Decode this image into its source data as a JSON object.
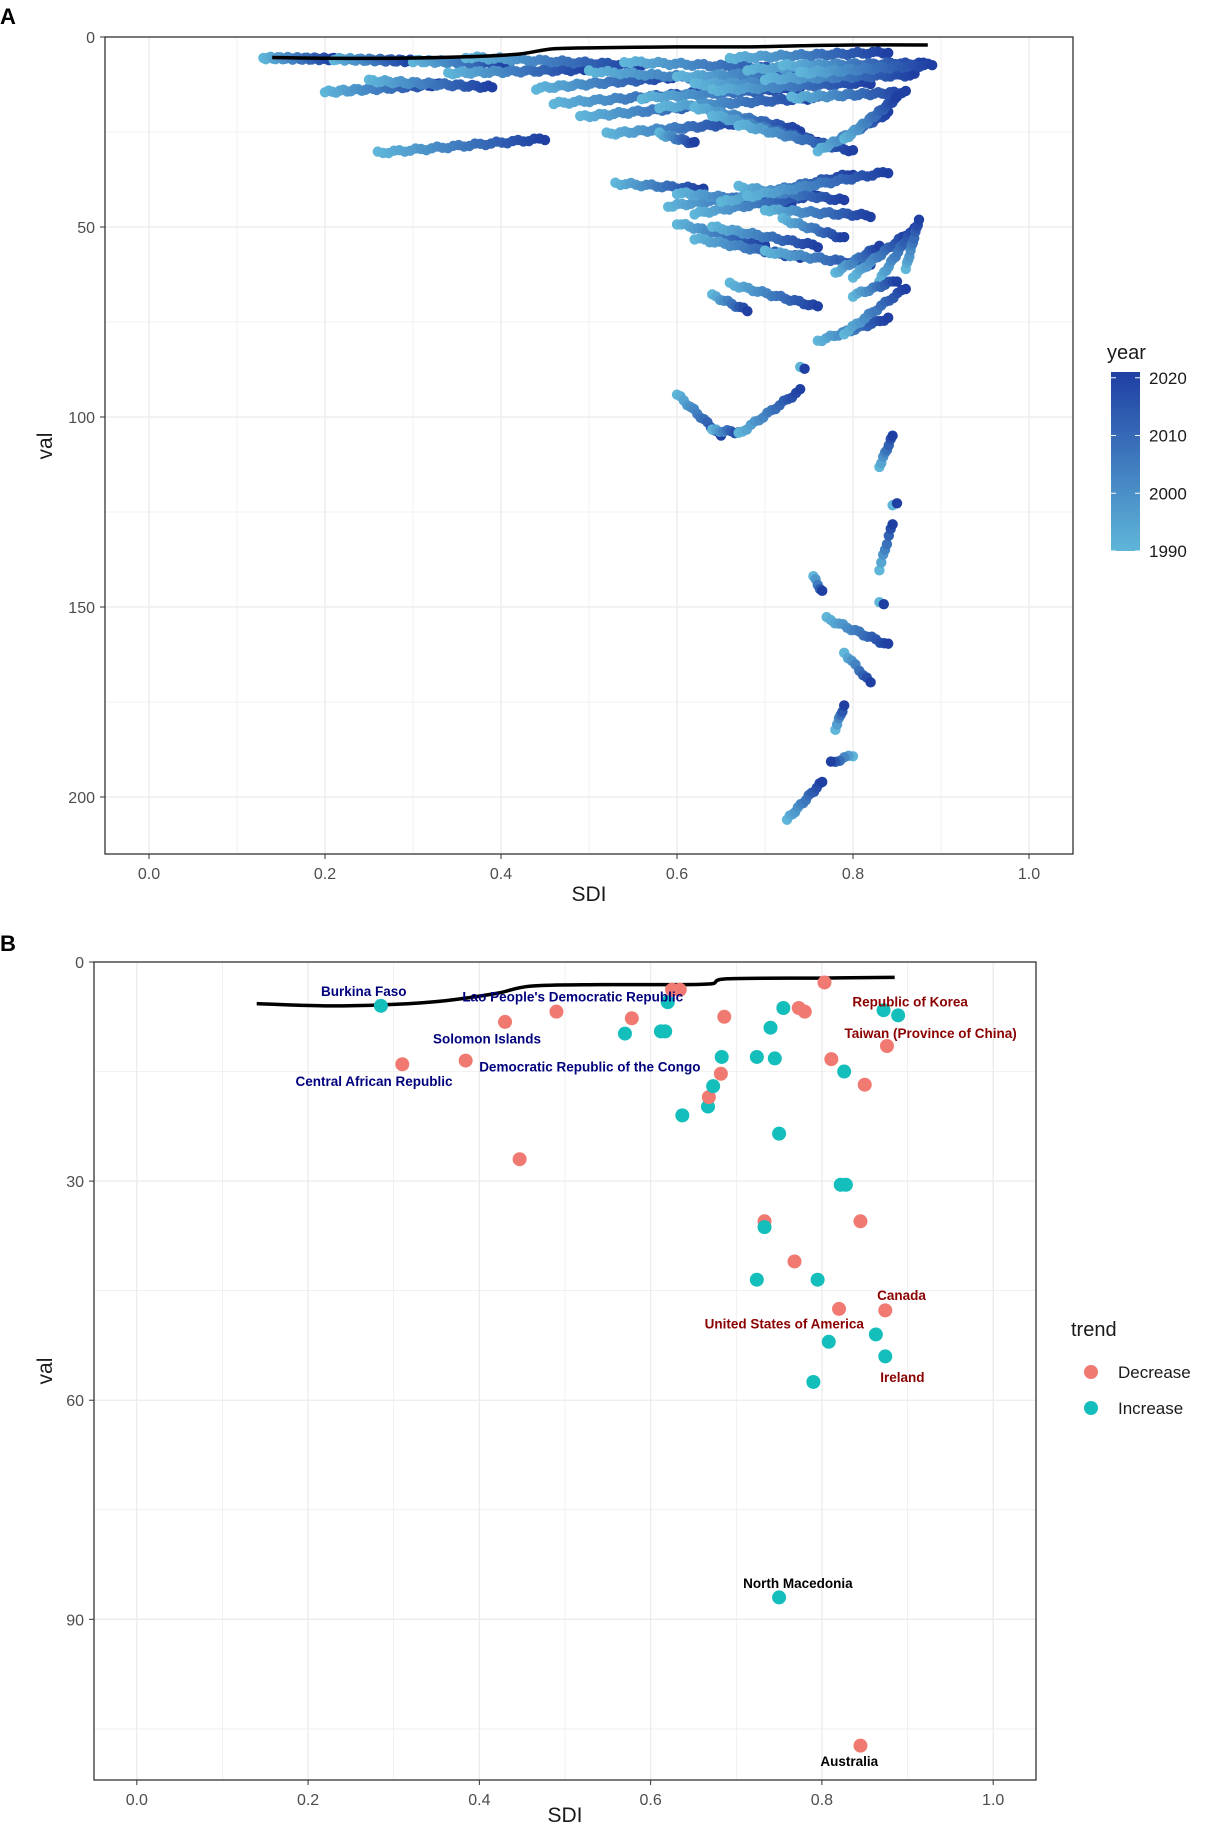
{
  "colors": {
    "year_low": "#5fb6d9",
    "year_high": "#1f3fa3",
    "decrease": "#f07a72",
    "increase": "#13bebb",
    "label_decrease": "#8b0000",
    "label_increase": "#00007d",
    "label_neutral": "#000000",
    "frontier": "#000000",
    "panel_border": "#333333",
    "grid": "#ebebeb"
  },
  "chart_data": [
    {
      "panel": "A",
      "type": "scatter",
      "xlabel": "SDI",
      "ylabel": "val",
      "xlim": [
        -0.05,
        1.05
      ],
      "ylim": [
        0,
        215
      ],
      "y_reversed": true,
      "xticks": [
        "0.0",
        "0.2",
        "0.4",
        "0.6",
        "0.8",
        "1.0"
      ],
      "yticks": [
        "0",
        "50",
        "100",
        "150",
        "200"
      ],
      "legend": {
        "title": "year",
        "labels": [
          "2020",
          "2010",
          "2000",
          "1990"
        ],
        "range": [
          1990,
          2021
        ]
      },
      "frontier": {
        "x": [
          0.14,
          0.2,
          0.28,
          0.36,
          0.42,
          0.46,
          0.52,
          0.6,
          0.68,
          0.74,
          0.8,
          0.885
        ],
        "y": [
          5.4,
          5.6,
          5.6,
          5.2,
          4.5,
          3.1,
          2.8,
          2.6,
          2.6,
          2.3,
          2.1,
          2.1
        ]
      },
      "trajectories": [
        {
          "x0": 0.13,
          "x1": 0.21,
          "y0": 5.5,
          "y1": 5.8,
          "n": 30
        },
        {
          "x0": 0.21,
          "x1": 0.3,
          "y0": 5.8,
          "y1": 6.3,
          "n": 30
        },
        {
          "x0": 0.3,
          "x1": 0.41,
          "y0": 6.3,
          "y1": 7.0,
          "n": 32
        },
        {
          "x0": 0.2,
          "x1": 0.33,
          "y0": 14.5,
          "y1": 12.5,
          "n": 32
        },
        {
          "x0": 0.25,
          "x1": 0.39,
          "y0": 11.5,
          "y1": 13.2,
          "n": 32
        },
        {
          "x0": 0.26,
          "x1": 0.45,
          "y0": 30.5,
          "y1": 26.8,
          "n": 32
        },
        {
          "x0": 0.34,
          "x1": 0.5,
          "y0": 9.5,
          "y1": 8.5,
          "n": 32
        },
        {
          "x0": 0.36,
          "x1": 0.56,
          "y0": 5.3,
          "y1": 7.5,
          "n": 32
        },
        {
          "x0": 0.44,
          "x1": 0.6,
          "y0": 13.5,
          "y1": 10.5,
          "n": 32
        },
        {
          "x0": 0.46,
          "x1": 0.64,
          "y0": 17.5,
          "y1": 14.5,
          "n": 32
        },
        {
          "x0": 0.49,
          "x1": 0.66,
          "y0": 21.0,
          "y1": 17.5,
          "n": 32
        },
        {
          "x0": 0.52,
          "x1": 0.68,
          "y0": 25.5,
          "y1": 22.5,
          "n": 32
        },
        {
          "x0": 0.5,
          "x1": 0.72,
          "y0": 9.0,
          "y1": 12.0,
          "n": 32
        },
        {
          "x0": 0.54,
          "x1": 0.74,
          "y0": 6.5,
          "y1": 8.5,
          "n": 32
        },
        {
          "x0": 0.56,
          "x1": 0.74,
          "y0": 16.0,
          "y1": 13.5,
          "n": 32
        },
        {
          "x0": 0.58,
          "x1": 0.76,
          "y0": 18.5,
          "y1": 16.0,
          "n": 32
        },
        {
          "x0": 0.6,
          "x1": 0.78,
          "y0": 10.5,
          "y1": 9.0,
          "n": 32
        },
        {
          "x0": 0.62,
          "x1": 0.8,
          "y0": 12.5,
          "y1": 11.5,
          "n": 32
        },
        {
          "x0": 0.64,
          "x1": 0.82,
          "y0": 14.0,
          "y1": 12.0,
          "n": 32
        },
        {
          "x0": 0.66,
          "x1": 0.84,
          "y0": 5.5,
          "y1": 4.0,
          "n": 32
        },
        {
          "x0": 0.68,
          "x1": 0.86,
          "y0": 8.5,
          "y1": 7.0,
          "n": 32
        },
        {
          "x0": 0.7,
          "x1": 0.87,
          "y0": 11.0,
          "y1": 10.0,
          "n": 32
        },
        {
          "x0": 0.72,
          "x1": 0.88,
          "y0": 7.5,
          "y1": 7.0,
          "n": 32
        },
        {
          "x0": 0.74,
          "x1": 0.89,
          "y0": 9.5,
          "y1": 7.3,
          "n": 32
        },
        {
          "x0": 0.73,
          "x1": 0.86,
          "y0": 16.0,
          "y1": 14.5,
          "n": 30
        },
        {
          "x0": 0.62,
          "x1": 0.74,
          "y0": 18.5,
          "y1": 24.5,
          "n": 28
        },
        {
          "x0": 0.64,
          "x1": 0.76,
          "y0": 20.5,
          "y1": 27.5,
          "n": 28
        },
        {
          "x0": 0.67,
          "x1": 0.8,
          "y0": 23.0,
          "y1": 30.0,
          "n": 28
        },
        {
          "x0": 0.76,
          "x1": 0.84,
          "y0": 30.0,
          "y1": 20.0,
          "n": 24
        },
        {
          "x0": 0.79,
          "x1": 0.85,
          "y0": 27.0,
          "y1": 16.0,
          "n": 24
        },
        {
          "x0": 0.58,
          "x1": 0.62,
          "y0": 25.5,
          "y1": 28.0,
          "n": 12
        },
        {
          "x0": 0.53,
          "x1": 0.63,
          "y0": 38.5,
          "y1": 40.0,
          "n": 18
        },
        {
          "x0": 0.59,
          "x1": 0.72,
          "y0": 44.5,
          "y1": 41.0,
          "n": 26
        },
        {
          "x0": 0.6,
          "x1": 0.73,
          "y0": 41.0,
          "y1": 44.0,
          "n": 26
        },
        {
          "x0": 0.62,
          "x1": 0.76,
          "y0": 46.5,
          "y1": 41.5,
          "n": 26
        },
        {
          "x0": 0.65,
          "x1": 0.8,
          "y0": 43.5,
          "y1": 36.0,
          "n": 26
        },
        {
          "x0": 0.67,
          "x1": 0.79,
          "y0": 39.5,
          "y1": 43.0,
          "n": 24
        },
        {
          "x0": 0.68,
          "x1": 0.84,
          "y0": 42.0,
          "y1": 35.5,
          "n": 28
        },
        {
          "x0": 0.7,
          "x1": 0.82,
          "y0": 45.5,
          "y1": 47.0,
          "n": 24
        },
        {
          "x0": 0.6,
          "x1": 0.7,
          "y0": 49.0,
          "y1": 55.0,
          "n": 22
        },
        {
          "x0": 0.62,
          "x1": 0.74,
          "y0": 53.0,
          "y1": 58.0,
          "n": 22
        },
        {
          "x0": 0.64,
          "x1": 0.76,
          "y0": 50.0,
          "y1": 55.0,
          "n": 22
        },
        {
          "x0": 0.72,
          "x1": 0.79,
          "y0": 48.0,
          "y1": 53.0,
          "n": 16
        },
        {
          "x0": 0.7,
          "x1": 0.82,
          "y0": 56.5,
          "y1": 60.0,
          "n": 22
        },
        {
          "x0": 0.78,
          "x1": 0.83,
          "y0": 62.0,
          "y1": 55.0,
          "n": 14
        },
        {
          "x0": 0.8,
          "x1": 0.86,
          "y0": 63.0,
          "y1": 52.0,
          "n": 16
        },
        {
          "x0": 0.83,
          "x1": 0.87,
          "y0": 64.0,
          "y1": 50.0,
          "n": 16
        },
        {
          "x0": 0.86,
          "x1": 0.875,
          "y0": 61.0,
          "y1": 48.0,
          "n": 12
        },
        {
          "x0": 0.64,
          "x1": 0.68,
          "y0": 68.0,
          "y1": 72.0,
          "n": 10
        },
        {
          "x0": 0.66,
          "x1": 0.76,
          "y0": 65.0,
          "y1": 71.0,
          "n": 20
        },
        {
          "x0": 0.76,
          "x1": 0.84,
          "y0": 80.0,
          "y1": 74.0,
          "n": 18
        },
        {
          "x0": 0.79,
          "x1": 0.86,
          "y0": 78.0,
          "y1": 66.0,
          "n": 16
        },
        {
          "x0": 0.8,
          "x1": 0.85,
          "y0": 68.0,
          "y1": 64.0,
          "n": 12
        },
        {
          "x0": 0.6,
          "x1": 0.65,
          "y0": 94.0,
          "y1": 105.0,
          "n": 14
        },
        {
          "x0": 0.64,
          "x1": 0.67,
          "y0": 103.5,
          "y1": 104.0,
          "n": 8
        },
        {
          "x0": 0.67,
          "x1": 0.74,
          "y0": 104.5,
          "y1": 93.0,
          "n": 16
        },
        {
          "x0": 0.74,
          "x1": 0.745,
          "y0": 87.0,
          "y1": 87.0,
          "n": 2
        },
        {
          "x0": 0.83,
          "x1": 0.845,
          "y0": 113.0,
          "y1": 105.0,
          "n": 8
        },
        {
          "x0": 0.83,
          "x1": 0.845,
          "y0": 140.0,
          "y1": 128.0,
          "n": 8
        },
        {
          "x0": 0.845,
          "x1": 0.85,
          "y0": 123.0,
          "y1": 123.0,
          "n": 2
        },
        {
          "x0": 0.755,
          "x1": 0.765,
          "y0": 142.0,
          "y1": 146.0,
          "n": 5
        },
        {
          "x0": 0.77,
          "x1": 0.84,
          "y0": 153.0,
          "y1": 160.0,
          "n": 16
        },
        {
          "x0": 0.83,
          "x1": 0.835,
          "y0": 149.0,
          "y1": 149.0,
          "n": 2
        },
        {
          "x0": 0.79,
          "x1": 0.82,
          "y0": 162.0,
          "y1": 170.0,
          "n": 8
        },
        {
          "x0": 0.78,
          "x1": 0.79,
          "y0": 182.0,
          "y1": 176.0,
          "n": 6
        },
        {
          "x0": 0.8,
          "x1": 0.775,
          "y0": 189.0,
          "y1": 191.0,
          "n": 6
        },
        {
          "x0": 0.725,
          "x1": 0.765,
          "y0": 206.0,
          "y1": 196.0,
          "n": 14
        }
      ]
    },
    {
      "panel": "B",
      "type": "scatter",
      "xlabel": "SDI",
      "ylabel": "val",
      "xlim": [
        -0.05,
        1.05
      ],
      "ylim": [
        0,
        112
      ],
      "y_reversed": true,
      "xticks": [
        "0.0",
        "0.2",
        "0.4",
        "0.6",
        "0.8",
        "1.0"
      ],
      "yticks": [
        "0",
        "30",
        "60",
        "90"
      ],
      "legend": {
        "title": "trend",
        "labels": [
          "Decrease",
          "Increase"
        ]
      },
      "frontier": {
        "x": [
          0.14,
          0.22,
          0.3,
          0.36,
          0.42,
          0.46,
          0.54,
          0.62,
          0.67,
          0.69,
          0.8,
          0.885
        ],
        "y": [
          5.7,
          6.0,
          5.8,
          5.3,
          4.3,
          3.3,
          3.1,
          3.1,
          3.0,
          2.3,
          2.2,
          2.1
        ]
      },
      "points": [
        {
          "x": 0.285,
          "y": 6.0,
          "trend": "Increase"
        },
        {
          "x": 0.31,
          "y": 14.0,
          "trend": "Decrease"
        },
        {
          "x": 0.384,
          "y": 13.5,
          "trend": "Decrease"
        },
        {
          "x": 0.43,
          "y": 8.2,
          "trend": "Decrease"
        },
        {
          "x": 0.447,
          "y": 27.0,
          "trend": "Decrease"
        },
        {
          "x": 0.49,
          "y": 6.8,
          "trend": "Decrease"
        },
        {
          "x": 0.57,
          "y": 9.8,
          "trend": "Increase"
        },
        {
          "x": 0.578,
          "y": 7.7,
          "trend": "Decrease"
        },
        {
          "x": 0.612,
          "y": 9.5,
          "trend": "Increase"
        },
        {
          "x": 0.617,
          "y": 9.5,
          "trend": "Increase"
        },
        {
          "x": 0.62,
          "y": 5.5,
          "trend": "Increase"
        },
        {
          "x": 0.625,
          "y": 3.8,
          "trend": "Decrease"
        },
        {
          "x": 0.634,
          "y": 3.8,
          "trend": "Decrease"
        },
        {
          "x": 0.637,
          "y": 21.0,
          "trend": "Increase"
        },
        {
          "x": 0.667,
          "y": 19.8,
          "trend": "Increase"
        },
        {
          "x": 0.668,
          "y": 18.5,
          "trend": "Decrease"
        },
        {
          "x": 0.673,
          "y": 17.0,
          "trend": "Increase"
        },
        {
          "x": 0.682,
          "y": 15.3,
          "trend": "Decrease"
        },
        {
          "x": 0.683,
          "y": 13.0,
          "trend": "Increase"
        },
        {
          "x": 0.686,
          "y": 7.5,
          "trend": "Decrease"
        },
        {
          "x": 0.724,
          "y": 13.0,
          "trend": "Increase"
        },
        {
          "x": 0.724,
          "y": 43.5,
          "trend": "Increase"
        },
        {
          "x": 0.733,
          "y": 35.5,
          "trend": "Decrease"
        },
        {
          "x": 0.733,
          "y": 36.3,
          "trend": "Increase"
        },
        {
          "x": 0.74,
          "y": 9.0,
          "trend": "Increase"
        },
        {
          "x": 0.745,
          "y": 13.2,
          "trend": "Increase"
        },
        {
          "x": 0.75,
          "y": 23.5,
          "trend": "Increase"
        },
        {
          "x": 0.75,
          "y": 87.0,
          "trend": "Increase"
        },
        {
          "x": 0.755,
          "y": 6.3,
          "trend": "Increase"
        },
        {
          "x": 0.768,
          "y": 41.0,
          "trend": "Decrease"
        },
        {
          "x": 0.773,
          "y": 6.3,
          "trend": "Decrease"
        },
        {
          "x": 0.78,
          "y": 6.8,
          "trend": "Decrease"
        },
        {
          "x": 0.79,
          "y": 57.5,
          "trend": "Increase"
        },
        {
          "x": 0.795,
          "y": 43.5,
          "trend": "Increase"
        },
        {
          "x": 0.803,
          "y": 2.8,
          "trend": "Decrease"
        },
        {
          "x": 0.808,
          "y": 52.0,
          "trend": "Increase"
        },
        {
          "x": 0.811,
          "y": 13.3,
          "trend": "Decrease"
        },
        {
          "x": 0.82,
          "y": 47.5,
          "trend": "Decrease"
        },
        {
          "x": 0.822,
          "y": 30.5,
          "trend": "Increase"
        },
        {
          "x": 0.826,
          "y": 15.0,
          "trend": "Increase"
        },
        {
          "x": 0.828,
          "y": 30.5,
          "trend": "Increase"
        },
        {
          "x": 0.845,
          "y": 35.5,
          "trend": "Decrease"
        },
        {
          "x": 0.845,
          "y": 107.3,
          "trend": "Decrease"
        },
        {
          "x": 0.85,
          "y": 16.8,
          "trend": "Decrease"
        },
        {
          "x": 0.863,
          "y": 51.0,
          "trend": "Increase"
        },
        {
          "x": 0.872,
          "y": 6.6,
          "trend": "Increase"
        },
        {
          "x": 0.874,
          "y": 47.7,
          "trend": "Decrease"
        },
        {
          "x": 0.874,
          "y": 54.0,
          "trend": "Increase"
        },
        {
          "x": 0.876,
          "y": 11.5,
          "trend": "Decrease"
        },
        {
          "x": 0.889,
          "y": 7.3,
          "trend": "Increase"
        }
      ],
      "annotations": [
        {
          "text": "Burkina Faso",
          "x": 0.265,
          "y": 4.0,
          "style": "increase",
          "anchor": "middle"
        },
        {
          "text": "Lao People's Democratic Republic",
          "x": 0.509,
          "y": 4.7,
          "style": "increase",
          "anchor": "middle"
        },
        {
          "text": "Solomon Islands",
          "x": 0.409,
          "y": 10.5,
          "style": "increase",
          "anchor": "middle"
        },
        {
          "text": "Democratic Republic of the Congo",
          "x": 0.529,
          "y": 14.3,
          "style": "increase",
          "anchor": "middle"
        },
        {
          "text": "Central African Republic",
          "x": 0.277,
          "y": 16.3,
          "style": "increase",
          "anchor": "middle"
        },
        {
          "text": "Republic of Korea",
          "x": 0.903,
          "y": 5.4,
          "style": "decrease",
          "anchor": "middle"
        },
        {
          "text": "Taiwan (Province of China)",
          "x": 0.927,
          "y": 9.7,
          "style": "decrease",
          "anchor": "middle"
        },
        {
          "text": "Canada",
          "x": 0.893,
          "y": 45.6,
          "style": "decrease",
          "anchor": "middle"
        },
        {
          "text": "United States of America",
          "x": 0.756,
          "y": 49.5,
          "style": "decrease",
          "anchor": "middle"
        },
        {
          "text": "Ireland",
          "x": 0.894,
          "y": 56.8,
          "style": "decrease",
          "anchor": "middle"
        },
        {
          "text": "North Macedonia",
          "x": 0.772,
          "y": 85.0,
          "style": "neutral",
          "anchor": "middle"
        },
        {
          "text": "Australia",
          "x": 0.832,
          "y": 109.4,
          "style": "neutral",
          "anchor": "middle"
        }
      ]
    }
  ],
  "panel_labels": {
    "a": "A",
    "b": "B"
  }
}
